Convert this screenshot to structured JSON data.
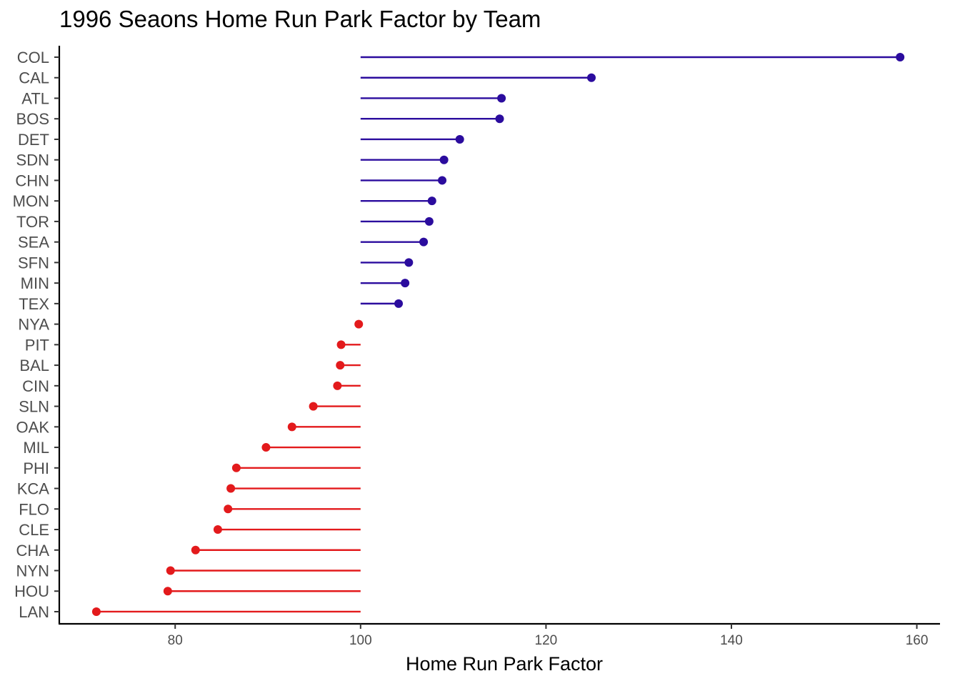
{
  "chart_data": {
    "type": "lollipop",
    "title": "1996 Seaons Home Run Park Factor by Team",
    "xlabel": "Home Run Park Factor",
    "ylabel": "",
    "baseline": 100,
    "xlim": [
      67.5,
      162.5
    ],
    "xticks": [
      80,
      100,
      120,
      140,
      160
    ],
    "grid": false,
    "legend": "none",
    "colors": {
      "above": "#2B0C9E",
      "below": "#E31A1C"
    },
    "categories": [
      "COL",
      "CAL",
      "ATL",
      "BOS",
      "DET",
      "SDN",
      "CHN",
      "MON",
      "TOR",
      "SEA",
      "SFN",
      "MIN",
      "TEX",
      "NYA",
      "PIT",
      "BAL",
      "CIN",
      "SLN",
      "OAK",
      "MIL",
      "PHI",
      "KCA",
      "FLO",
      "CLE",
      "CHA",
      "NYN",
      "HOU",
      "LAN"
    ],
    "values": [
      158.2,
      124.9,
      115.2,
      115.0,
      110.7,
      109.0,
      108.8,
      107.7,
      107.4,
      106.8,
      105.2,
      104.8,
      104.1,
      99.8,
      97.9,
      97.8,
      97.5,
      94.9,
      92.6,
      89.8,
      86.6,
      86.0,
      85.7,
      84.6,
      82.2,
      79.5,
      79.2,
      71.5
    ]
  }
}
